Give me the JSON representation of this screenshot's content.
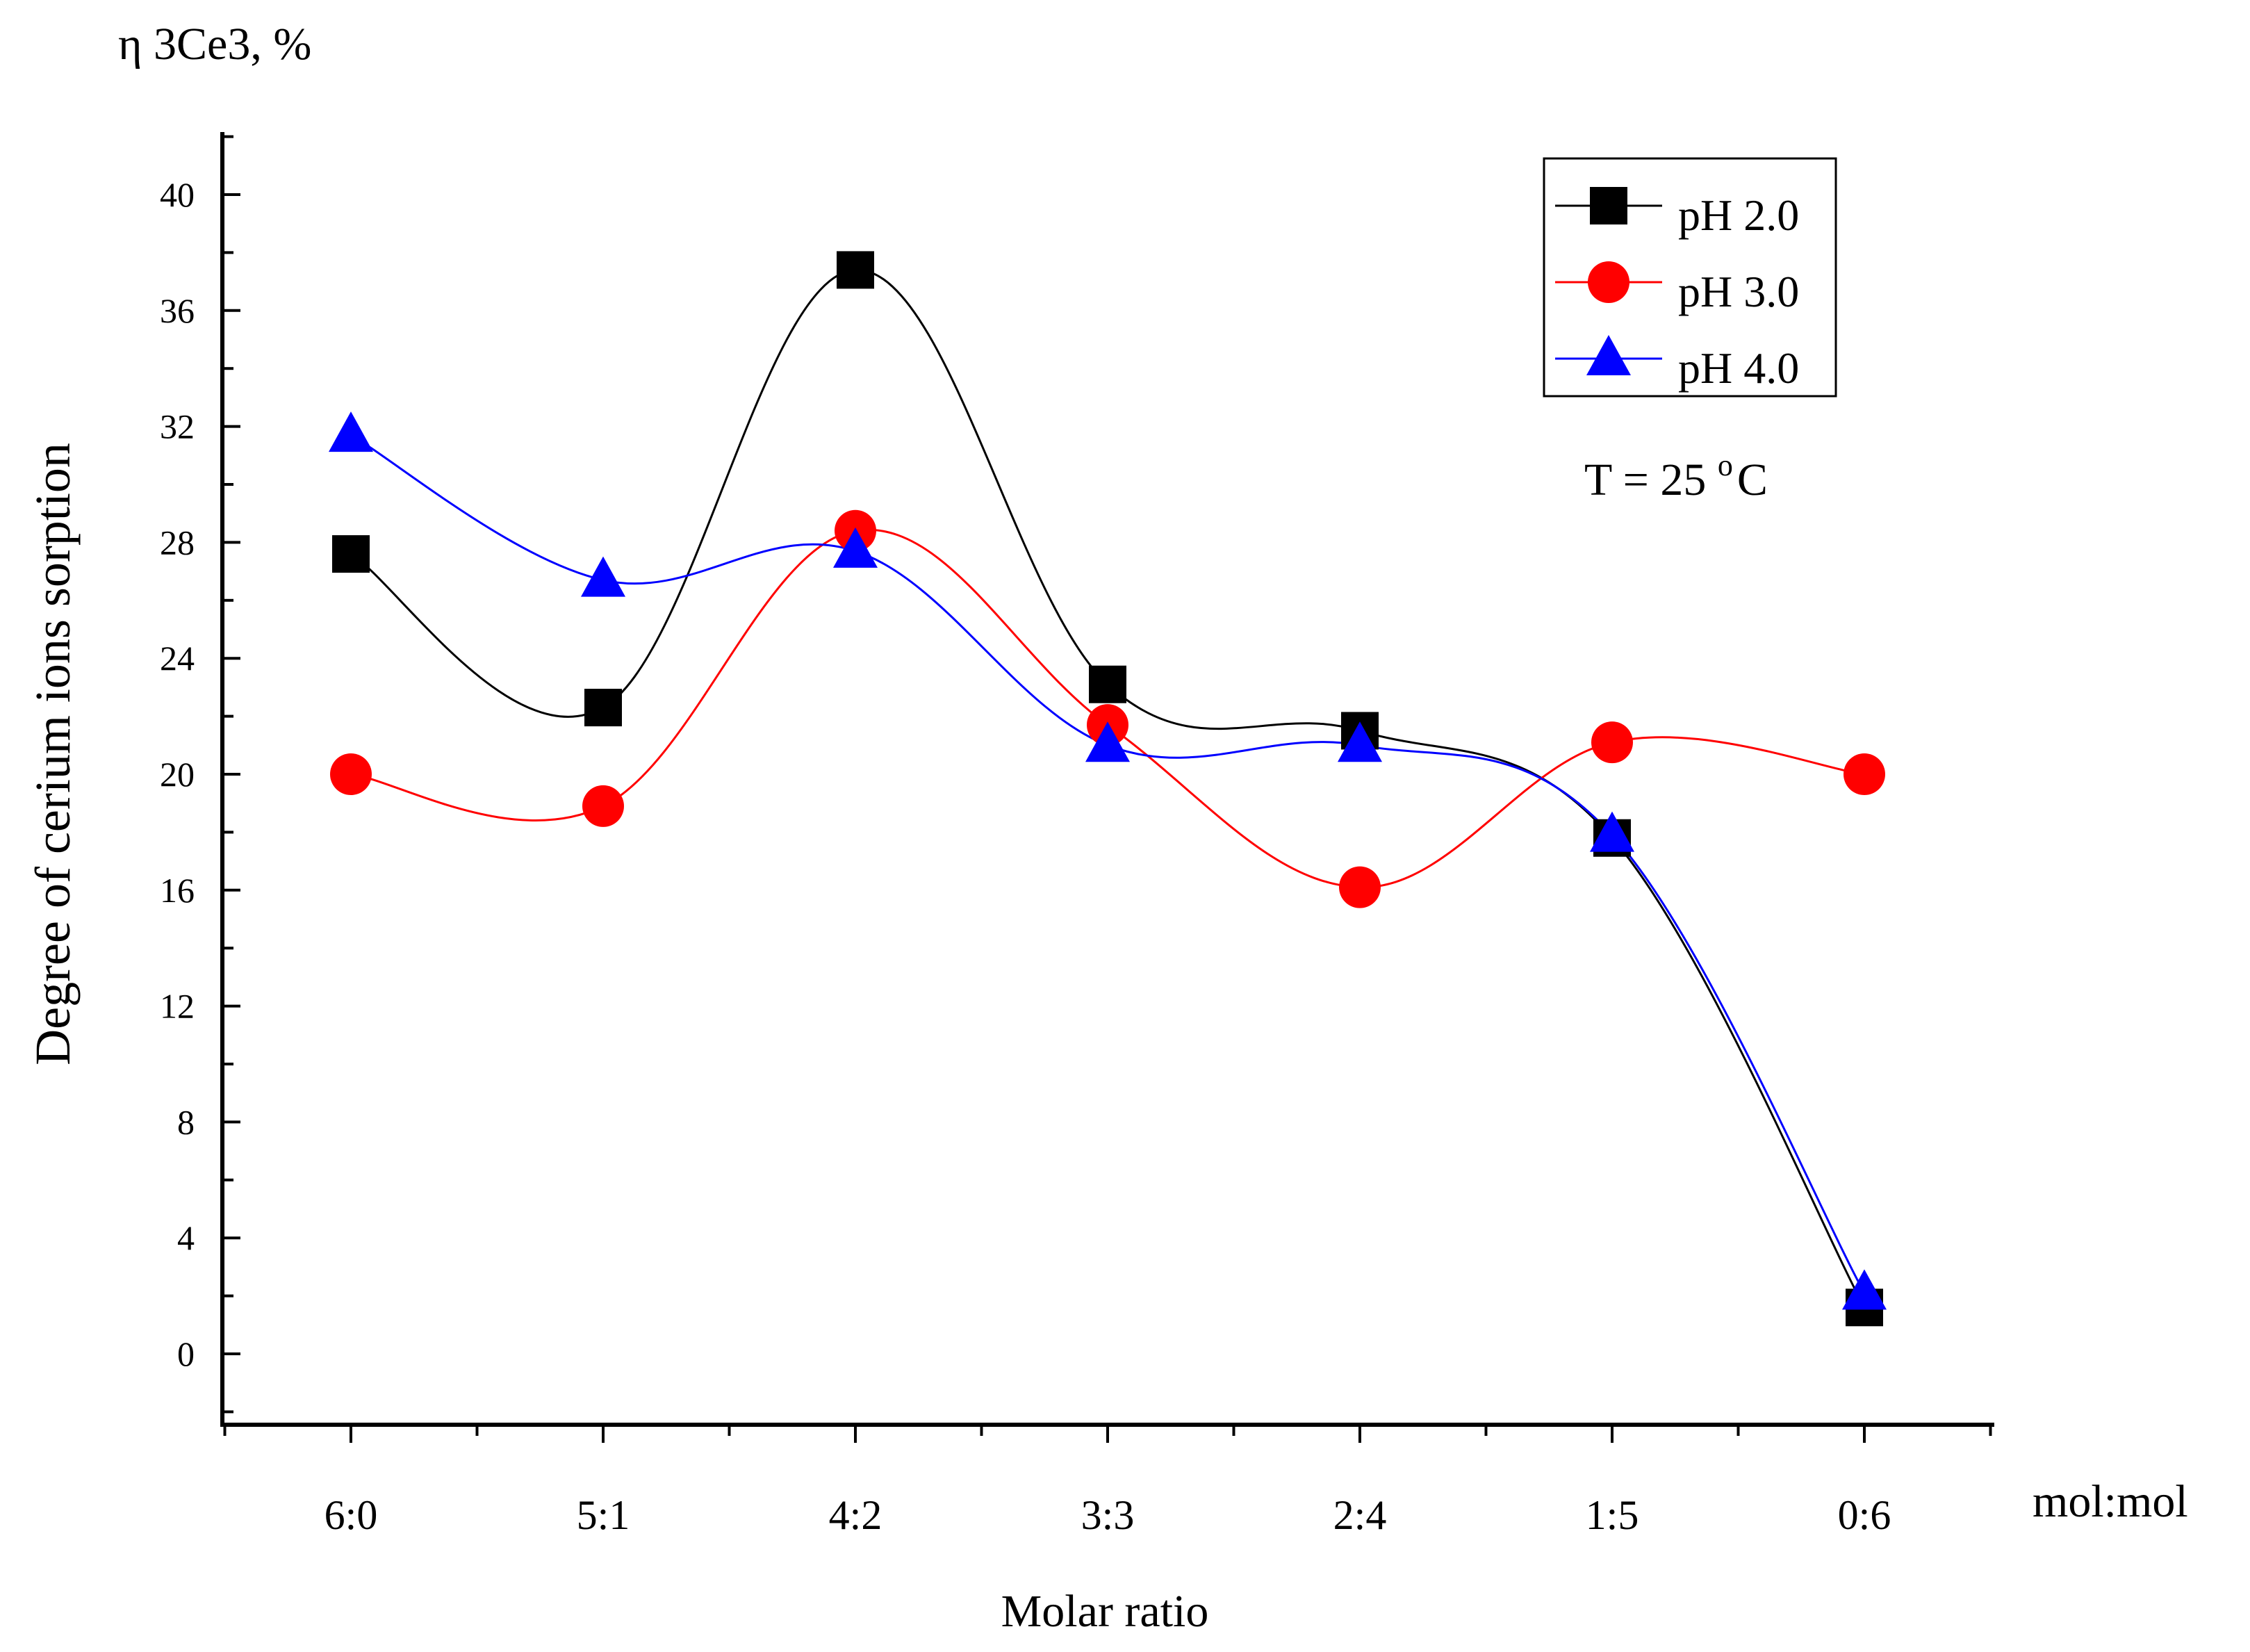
{
  "chart_data": {
    "type": "line",
    "title": "",
    "xlabel": "Molar ratio",
    "ylabel": "Degree of cerium ions sorption",
    "y_unit_label": "η 3Ce3, %",
    "x_unit_label": "mol:mol",
    "annotation": "T = 25 °C",
    "annotation_parts": {
      "prefix": "T = 25 ",
      "sup": "o",
      "suffix": "C"
    },
    "categories": [
      "6:0",
      "5:1",
      "4:2",
      "3:3",
      "2:4",
      "1:5",
      "0:6"
    ],
    "ylim": [
      -2.5,
      42.5
    ],
    "yticks": [
      0,
      4,
      8,
      12,
      16,
      20,
      24,
      28,
      32,
      36,
      40
    ],
    "grid": false,
    "legend_position": "top-right",
    "series": [
      {
        "name": "pH 2.0",
        "label": "pH 2.0",
        "color": "#000000",
        "marker": "square",
        "values": [
          27.6,
          22.3,
          37.4,
          23.1,
          21.5,
          17.8,
          1.6
        ]
      },
      {
        "name": "pH 3.0",
        "label": "pH 3.0",
        "color": "#ff0000",
        "marker": "circle",
        "values": [
          20.0,
          18.9,
          28.4,
          21.7,
          16.1,
          21.1,
          20.0
        ]
      },
      {
        "name": "pH 4.0",
        "label": "pH 4.0",
        "color": "#0000ff",
        "marker": "triangle",
        "values": [
          31.7,
          26.7,
          27.7,
          21.0,
          21.0,
          17.9,
          2.1
        ]
      }
    ]
  }
}
